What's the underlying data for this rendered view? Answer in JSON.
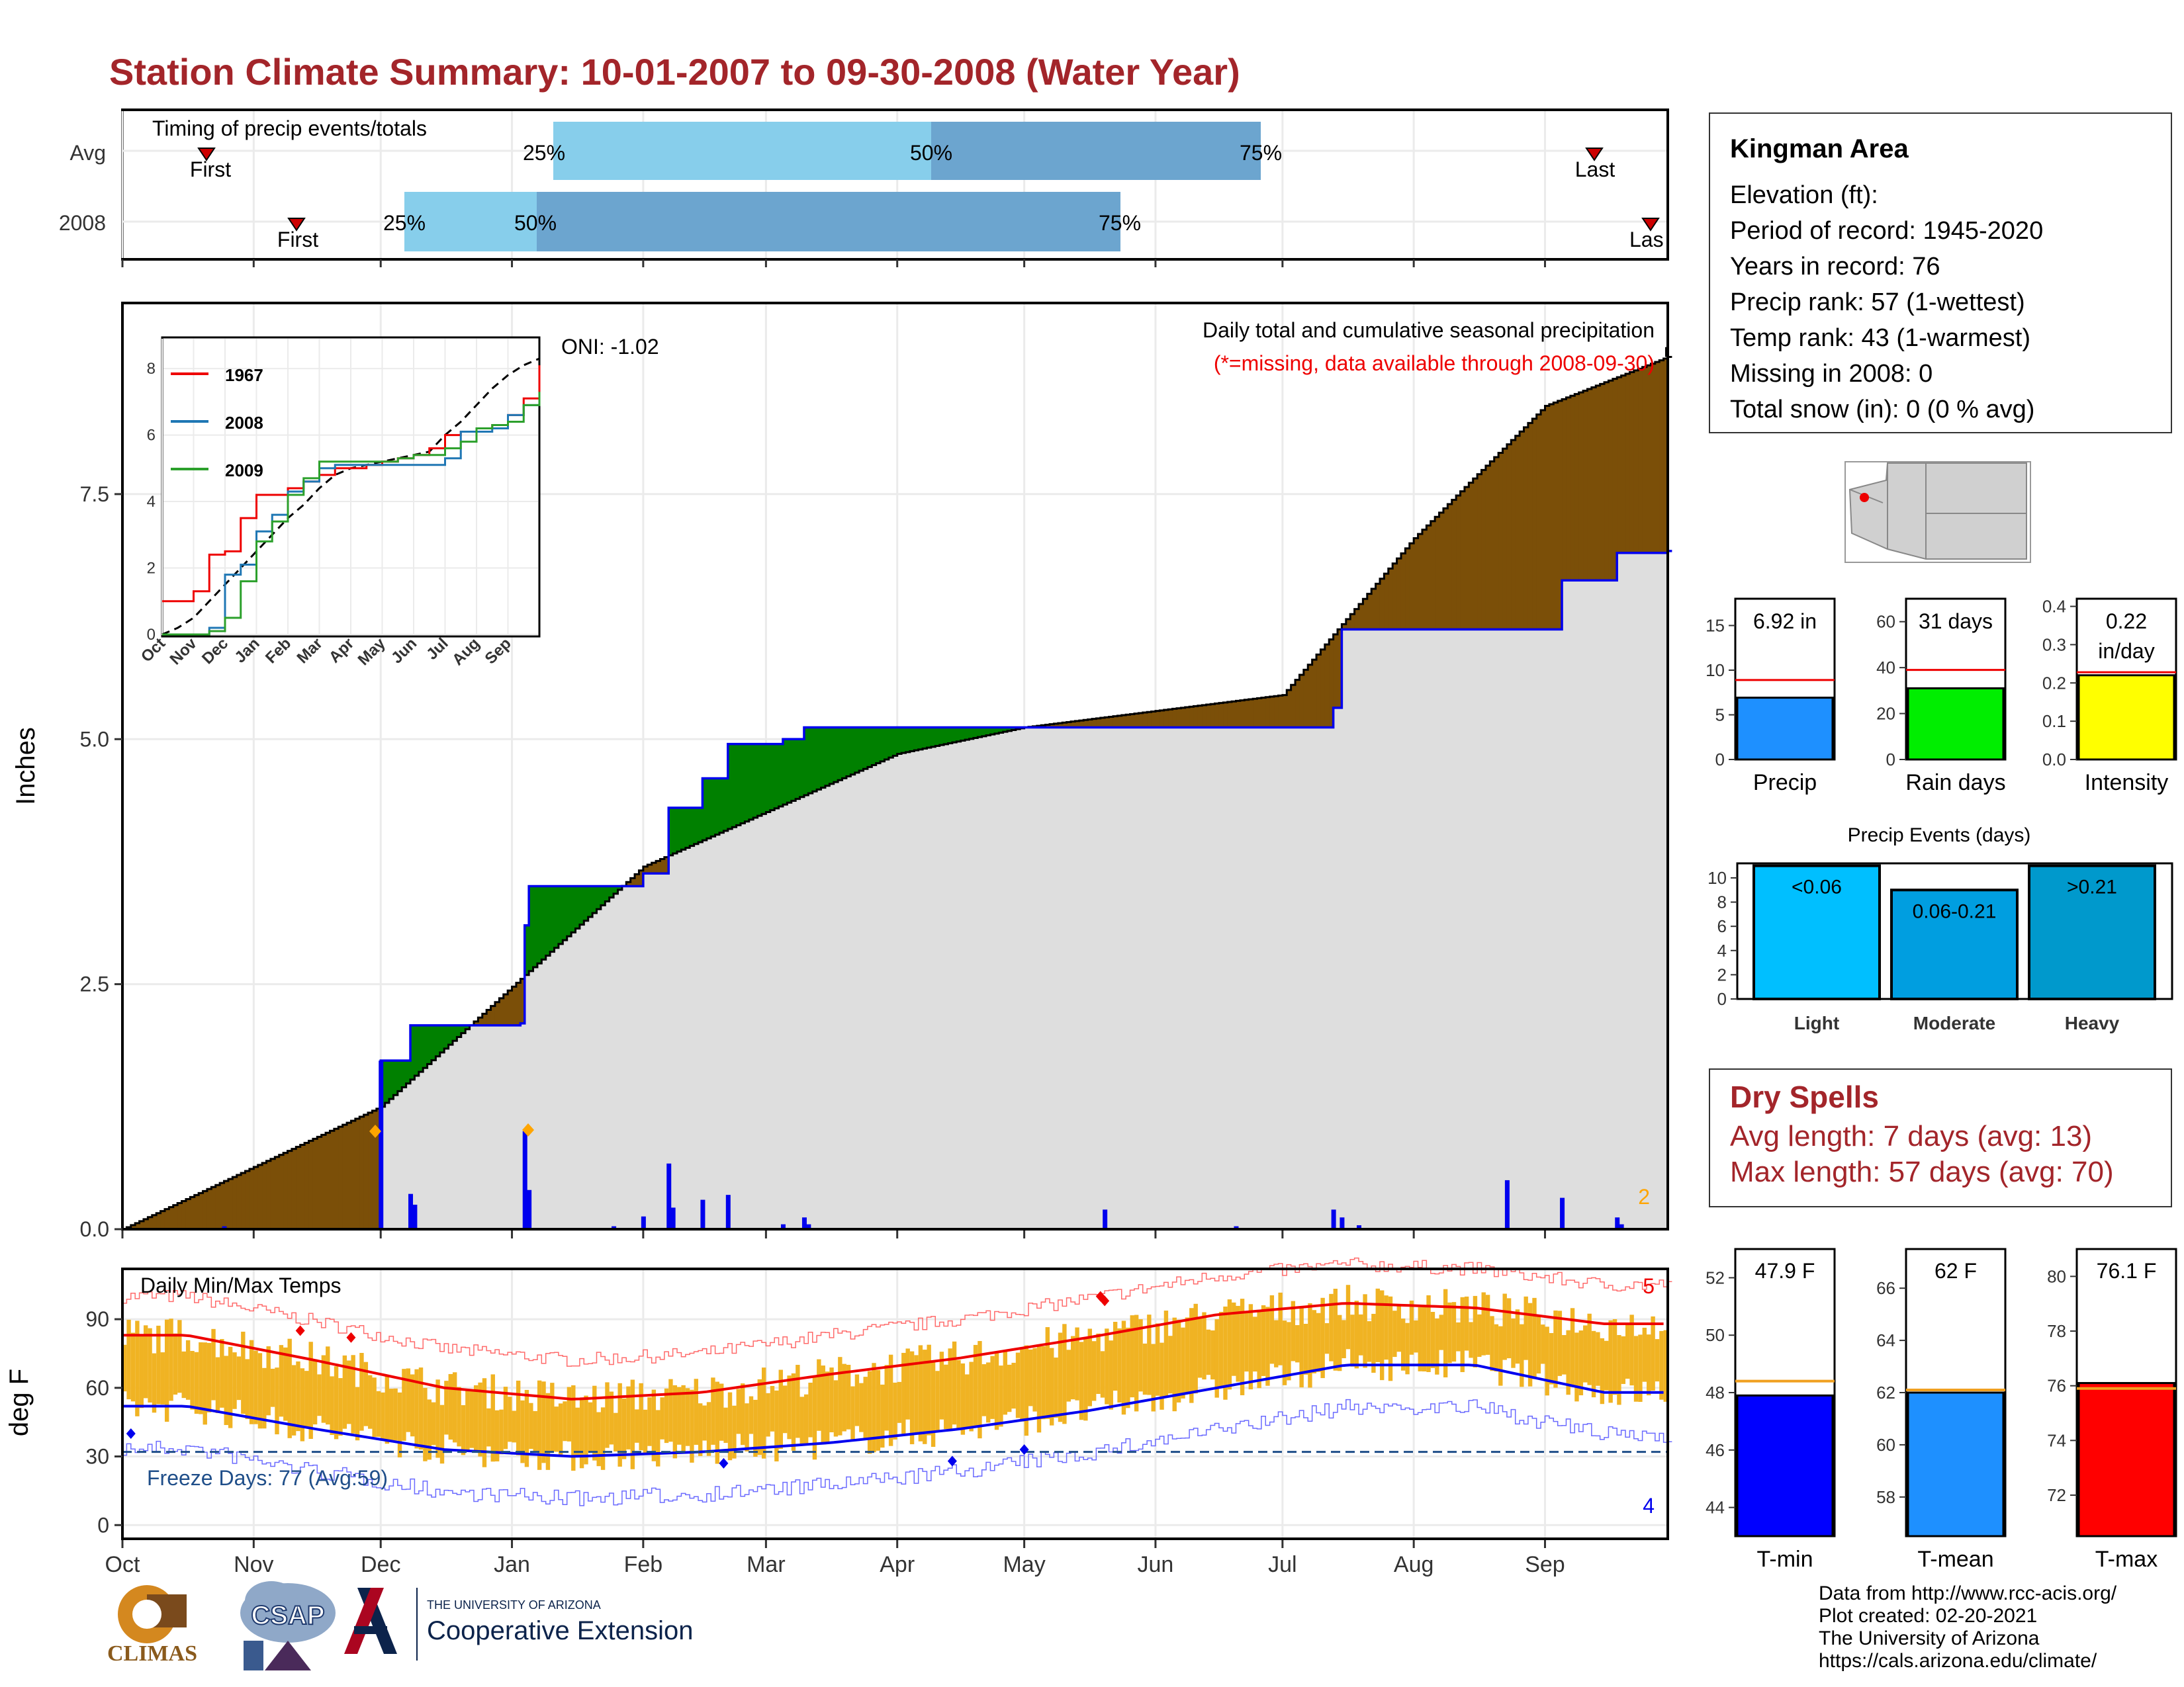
{
  "header": {
    "title": "Station Climate Summary: 10-01-2007 to 09-30-2008 (Water Year)"
  },
  "timing_panel": {
    "label": "Timing of precip events/totals",
    "rows": [
      "Avg",
      "2008"
    ],
    "first_label": "First",
    "last_label": "Last",
    "last_label_clipped": "Las",
    "pct_labels": [
      "25%",
      "50%",
      "75%"
    ]
  },
  "station": {
    "name": "Kingman Area",
    "elevation": "Elevation (ft):",
    "period": "Period of record: 1945-2020",
    "years": "Years in record: 76",
    "precip_rank": "Precip rank: 57 (1-wettest)",
    "temp_rank": "Temp rank: 43 (1-warmest)",
    "missing": "Missing in 2008: 0",
    "snow": "Total snow (in): 0 (0 % avg)"
  },
  "precip_panel": {
    "ylabel": "Inches",
    "oni": "ONI: -1.02",
    "desc": "Daily total and cumulative seasonal precipitation",
    "missing_note": "(*=missing, data available through 2008-09-30)",
    "corner_count": "2",
    "yticks": [
      "0.0",
      "2.5",
      "5.0",
      "7.5"
    ]
  },
  "inset": {
    "legend": [
      "1967",
      "2008",
      "2009"
    ],
    "months": [
      "Oct",
      "Nov",
      "Dec",
      "Jan",
      "Feb",
      "Mar",
      "Apr",
      "May",
      "Jun",
      "Jul",
      "Aug",
      "Sep"
    ],
    "yticks": [
      "0",
      "2",
      "4",
      "6",
      "8"
    ]
  },
  "mini_bars": [
    {
      "label": "Precip",
      "value_text": "6.92 in",
      "value": 6.92,
      "avg": 8.9,
      "ymax": 18,
      "ticks": [
        "0",
        "5",
        "10",
        "15"
      ],
      "color": "#1e90ff"
    },
    {
      "label": "Rain days",
      "value_text": "31 days",
      "value": 31,
      "avg": 39,
      "ymax": 70,
      "ticks": [
        "0",
        "20",
        "40",
        "60"
      ],
      "color": "#00ee00"
    },
    {
      "label": "Intensity",
      "value_text": "0.22",
      "value_text2": "in/day",
      "value": 0.22,
      "avg": 0.228,
      "ymax": 0.42,
      "ticks": [
        "0.0",
        "0.1",
        "0.2",
        "0.3",
        "0.4"
      ],
      "color": "#ffff00"
    }
  ],
  "events": {
    "title": "Precip Events (days)",
    "categories": [
      "Light",
      "Moderate",
      "Heavy"
    ],
    "labels": [
      "<0.06",
      "0.06-0.21",
      ">0.21"
    ],
    "values": [
      11,
      9,
      11
    ],
    "colors": [
      "#00bfff",
      "#009ee0",
      "#0099cc"
    ],
    "ticks": [
      "0",
      "2",
      "4",
      "6",
      "8",
      "10"
    ]
  },
  "dry_spells": {
    "title": "Dry Spells",
    "avg": "Avg length: 7 days (avg: 13)",
    "max": "Max length: 57 days (avg: 70)"
  },
  "temp_panel": {
    "title": "Daily Min/Max Temps",
    "ylabel": "deg F",
    "freeze": "Freeze Days: 77 (Avg:59)",
    "count_high": "5",
    "count_low": "4",
    "yticks": [
      "0",
      "30",
      "60",
      "90"
    ],
    "months": [
      "Oct",
      "Nov",
      "Dec",
      "Jan",
      "Feb",
      "Mar",
      "Apr",
      "May",
      "Jun",
      "Jul",
      "Aug",
      "Sep"
    ]
  },
  "temp_bars": [
    {
      "label": "T-min",
      "value_text": "47.9 F",
      "value": 47.9,
      "avg": 48.4,
      "ymin": 43,
      "ymax": 53,
      "ticks": [
        "44",
        "46",
        "48",
        "50",
        "52"
      ],
      "color": "#0000ff"
    },
    {
      "label": "T-mean",
      "value_text": "62 F",
      "value": 62.0,
      "avg": 62.1,
      "ymin": 56.5,
      "ymax": 67.5,
      "ticks": [
        "58",
        "60",
        "62",
        "64",
        "66"
      ],
      "color": "#1e90ff"
    },
    {
      "label": "T-max",
      "value_text": "76.1 F",
      "value": 76.1,
      "avg": 75.9,
      "ymin": 70.5,
      "ymax": 81,
      "ticks": [
        "72",
        "74",
        "76",
        "78",
        "80"
      ],
      "color": "#ff0000"
    }
  ],
  "credits": [
    "Data from http://www.rcc-acis.org/",
    "Plot created: 02-20-2021",
    "The University of Arizona",
    "https://cals.arizona.edu/climate/"
  ],
  "logos": {
    "climas": "CLIMAS",
    "csap": "CSAP",
    "ua_small": "THE UNIVERSITY OF ARIZONA",
    "ua_big": "Cooperative Extension"
  },
  "chart_data": [
    {
      "type": "area",
      "title": "Daily total and cumulative seasonal precipitation",
      "ylabel": "Inches",
      "ylim": [
        0,
        9.4
      ],
      "series": [
        {
          "name": "2008 cumulative",
          "x": [
            "Oct 1",
            "Nov 30",
            "Dec 1",
            "Dec 8",
            "Jan 3",
            "Jan 4",
            "Jan 5",
            "Feb 1",
            "Feb 7",
            "Feb 15",
            "Feb 21",
            "Mar 5",
            "Mar 10",
            "Mar 11",
            "May 20",
            "Jul 13",
            "Jul 15",
            "Aug 23",
            "Sep 5",
            "Sep 18",
            "Sep 30"
          ],
          "values": [
            0.0,
            0.0,
            1.72,
            2.08,
            2.1,
            3.1,
            3.5,
            3.63,
            4.3,
            4.6,
            4.95,
            5.0,
            5.12,
            5.12,
            5.12,
            5.32,
            6.12,
            6.12,
            6.62,
            6.9,
            6.92
          ]
        },
        {
          "name": "Average cumulative",
          "x": [
            "Oct 1",
            "Dec 1",
            "Feb 1",
            "Apr 1",
            "May 1",
            "Jul 1",
            "Aug 1",
            "Sep 1",
            "Sep 30"
          ],
          "values": [
            0.0,
            1.25,
            3.7,
            4.85,
            5.12,
            5.45,
            7.05,
            8.4,
            8.9
          ]
        }
      ]
    },
    {
      "type": "line",
      "title": "",
      "xlabel": "",
      "ylim": [
        0,
        9
      ],
      "series": [
        {
          "name": "1967",
          "values": [
            1.0,
            1.0,
            1.3,
            2.4,
            2.5,
            3.5,
            4.2,
            4.2,
            4.4,
            4.6,
            4.8,
            5.0,
            5.0,
            5.1,
            5.2,
            5.3,
            5.4,
            5.6,
            6.0,
            6.1,
            6.2,
            6.3,
            6.6,
            7.1,
            8.1
          ]
        },
        {
          "name": "2008",
          "values": [
            0.0,
            0.0,
            0.0,
            0.2,
            1.8,
            2.1,
            3.1,
            3.6,
            4.3,
            4.6,
            5.0,
            5.1,
            5.1,
            5.1,
            5.1,
            5.1,
            5.1,
            5.1,
            5.3,
            6.1,
            6.1,
            6.2,
            6.6,
            6.9,
            6.9
          ]
        },
        {
          "name": "2009",
          "values": [
            0.0,
            0.0,
            0.0,
            0.1,
            0.5,
            1.6,
            2.8,
            3.4,
            4.2,
            4.7,
            5.2,
            5.2,
            5.2,
            5.2,
            5.2,
            5.3,
            5.4,
            5.4,
            5.6,
            5.8,
            6.2,
            6.3,
            6.4,
            6.9,
            7.3
          ]
        }
      ]
    },
    {
      "type": "bar",
      "categories": [
        "Precip"
      ],
      "values": [
        6.92
      ],
      "ylim": [
        0,
        18
      ]
    },
    {
      "type": "bar",
      "categories": [
        "Rain days"
      ],
      "values": [
        31
      ],
      "ylim": [
        0,
        70
      ]
    },
    {
      "type": "bar",
      "categories": [
        "Intensity"
      ],
      "values": [
        0.22
      ],
      "ylim": [
        0,
        0.42
      ]
    },
    {
      "type": "bar",
      "title": "Precip Events (days)",
      "categories": [
        "Light",
        "Moderate",
        "Heavy"
      ],
      "values": [
        11,
        9,
        11
      ],
      "ylim": [
        0,
        11
      ]
    },
    {
      "type": "line",
      "title": "Daily Min/Max Temps",
      "ylabel": "deg F",
      "ylim": [
        0,
        112
      ],
      "categories": [
        "Oct",
        "Nov",
        "Dec",
        "Jan",
        "Feb",
        "Mar",
        "Apr",
        "May",
        "Jun",
        "Jul",
        "Aug",
        "Sep"
      ],
      "series": [
        {
          "name": "avg max",
          "values": [
            83,
            72,
            60,
            55,
            58,
            66,
            73,
            82,
            92,
            97,
            95,
            88
          ]
        },
        {
          "name": "avg min",
          "values": [
            52,
            42,
            33,
            30,
            32,
            36,
            42,
            50,
            60,
            70,
            70,
            58
          ]
        }
      ]
    },
    {
      "type": "bar",
      "categories": [
        "T-min"
      ],
      "values": [
        47.9
      ],
      "ylim": [
        43,
        53
      ]
    },
    {
      "type": "bar",
      "categories": [
        "T-mean"
      ],
      "values": [
        62.0
      ],
      "ylim": [
        56.5,
        67.5
      ]
    },
    {
      "type": "bar",
      "categories": [
        "T-max"
      ],
      "values": [
        76.1
      ],
      "ylim": [
        70.5,
        81
      ]
    }
  ]
}
